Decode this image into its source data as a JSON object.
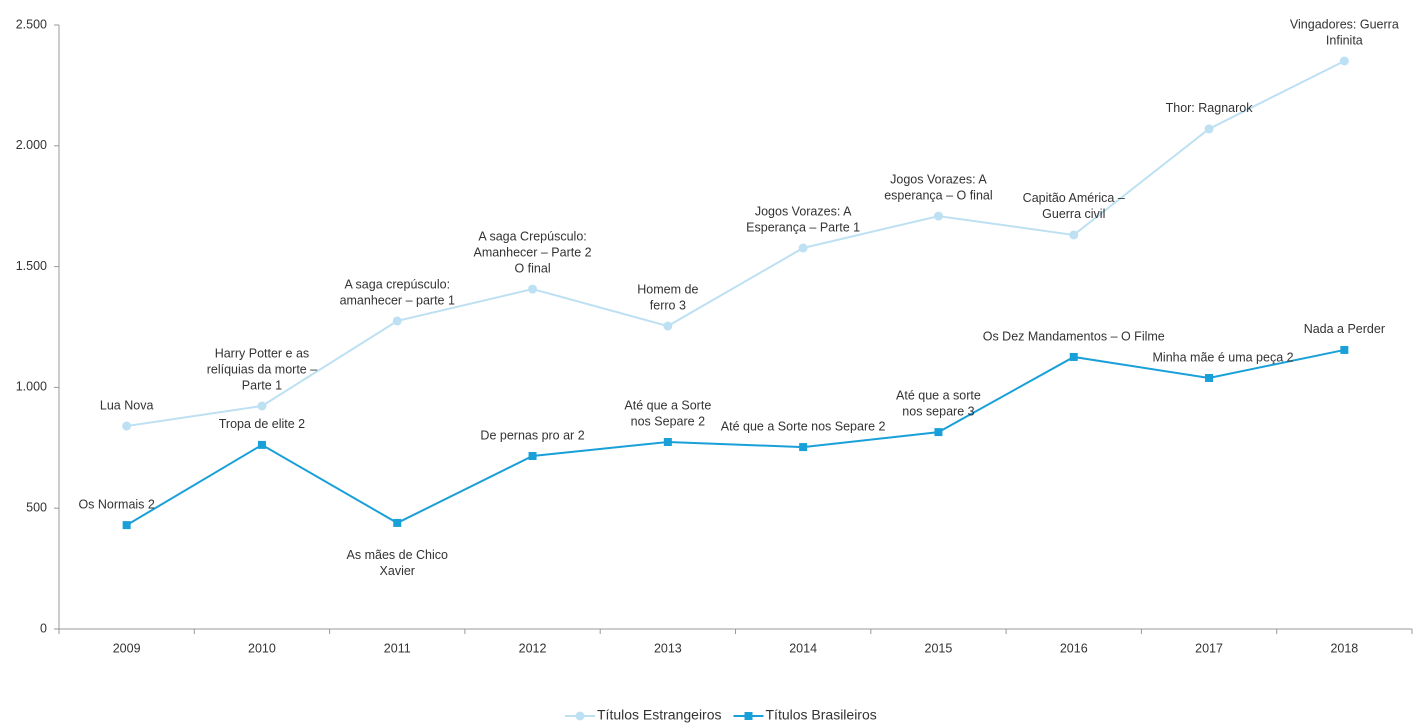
{
  "chart_data": {
    "type": "line",
    "categories": [
      "2009",
      "2010",
      "2011",
      "2012",
      "2013",
      "2014",
      "2015",
      "2016",
      "2017",
      "2018"
    ],
    "ylim": [
      0,
      2500
    ],
    "yticks": [
      0,
      500,
      {
        "value": 1000,
        "label": "1.000"
      },
      {
        "value": 1500,
        "label": "1.500"
      },
      {
        "value": 2000,
        "label": "2.000"
      },
      {
        "value": 2500,
        "label": "2.500"
      }
    ],
    "legend": "bottom",
    "series": [
      {
        "name": "Títulos Estrangeiros",
        "color": "#bde0f3",
        "marker": "circle",
        "values": [
          840,
          923,
          1275,
          1407,
          1254,
          1577,
          1709,
          1631,
          2070,
          2351
        ],
        "labels": [
          [
            "Lua Nova"
          ],
          [
            "Harry Potter e as",
            "relíquias da morte –",
            "Parte 1"
          ],
          [
            "A saga crepúsculo:",
            "amanhecer – parte 1"
          ],
          [
            "A saga Crepúsculo:",
            "Amanhecer – Parte 2",
            "O final"
          ],
          [
            "Homem de",
            "ferro 3"
          ],
          [
            "Jogos Vorazes: A",
            "Esperança – Parte 1"
          ],
          [
            "Jogos Vorazes: A",
            "esperança – O final"
          ],
          [
            "Capitão América –",
            "Guerra civil"
          ],
          [
            "Thor: Ragnarok"
          ],
          [
            "Vingadores: Guerra",
            "Infinita"
          ]
        ]
      },
      {
        "name": "Títulos Brasileiros",
        "color": "#1aa0d8",
        "marker": "square",
        "values": [
          430,
          762,
          439,
          716,
          774,
          753,
          815,
          1126,
          1039,
          1155
        ],
        "labels": [
          [
            "Os Normais 2"
          ],
          [
            "Tropa de elite 2"
          ],
          [
            "As mães de Chico",
            "Xavier"
          ],
          [
            "De pernas pro ar 2"
          ],
          [
            "Até que a Sorte",
            "nos Separe 2"
          ],
          [
            "Até que a Sorte nos Separe 2"
          ],
          [
            "Até que a sorte",
            "nos separe 3"
          ],
          [
            "Os Dez Mandamentos – O Filme"
          ],
          [
            "Minha mãe é uma peça 2"
          ],
          [
            "Nada a Perder"
          ]
        ]
      }
    ]
  }
}
